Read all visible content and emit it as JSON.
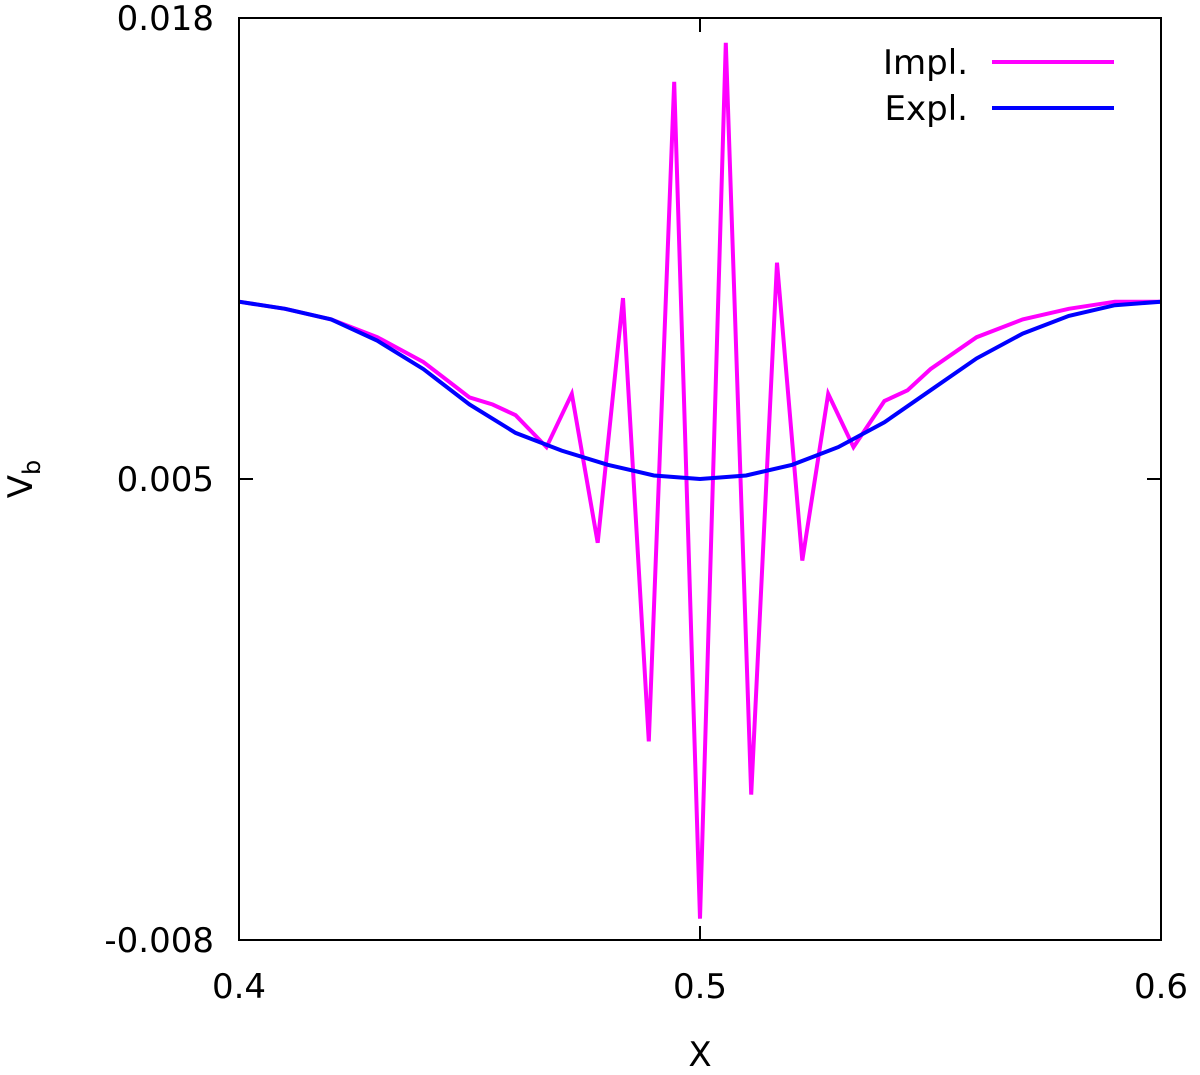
{
  "chart_data": {
    "type": "line",
    "title": "",
    "xlabel": "X",
    "ylabel": "V",
    "ylabel_subscript": "b",
    "xlim": [
      0.4,
      0.6
    ],
    "ylim": [
      -0.008,
      0.018
    ],
    "xticks": [
      "0.4",
      "0.5",
      "0.6"
    ],
    "yticks": [
      "-0.008",
      "0.005",
      "0.018"
    ],
    "grid": false,
    "legend_position": "top-right",
    "series": [
      {
        "name": "Impl.",
        "color": "#ff00ff",
        "x": [
          0.4,
          0.41,
          0.42,
          0.43,
          0.44,
          0.45,
          0.455,
          0.46,
          0.4667,
          0.4722,
          0.4778,
          0.4833,
          0.4889,
          0.4944,
          0.5,
          0.5056,
          0.5111,
          0.5167,
          0.5222,
          0.5278,
          0.5333,
          0.54,
          0.545,
          0.55,
          0.56,
          0.57,
          0.58,
          0.59,
          0.6
        ],
        "y": [
          0.01,
          0.0098,
          0.0095,
          0.009,
          0.0083,
          0.0073,
          0.0071,
          0.0068,
          0.0059,
          0.0074,
          0.0032,
          0.0101,
          -0.0024,
          0.0162,
          -0.0074,
          0.0173,
          -0.0039,
          0.0111,
          0.0027,
          0.0074,
          0.0059,
          0.0072,
          0.0075,
          0.0081,
          0.009,
          0.0095,
          0.0098,
          0.01,
          0.01
        ]
      },
      {
        "name": "Expl.",
        "color": "#0000ff",
        "x": [
          0.4,
          0.41,
          0.42,
          0.43,
          0.44,
          0.45,
          0.46,
          0.47,
          0.48,
          0.49,
          0.5,
          0.51,
          0.52,
          0.53,
          0.54,
          0.55,
          0.56,
          0.57,
          0.58,
          0.59,
          0.6
        ],
        "y": [
          0.01,
          0.0098,
          0.0095,
          0.0089,
          0.0081,
          0.0071,
          0.0063,
          0.0058,
          0.0054,
          0.0051,
          0.005,
          0.0051,
          0.0054,
          0.0059,
          0.0066,
          0.0075,
          0.0084,
          0.0091,
          0.0096,
          0.0099,
          0.01
        ]
      }
    ]
  }
}
